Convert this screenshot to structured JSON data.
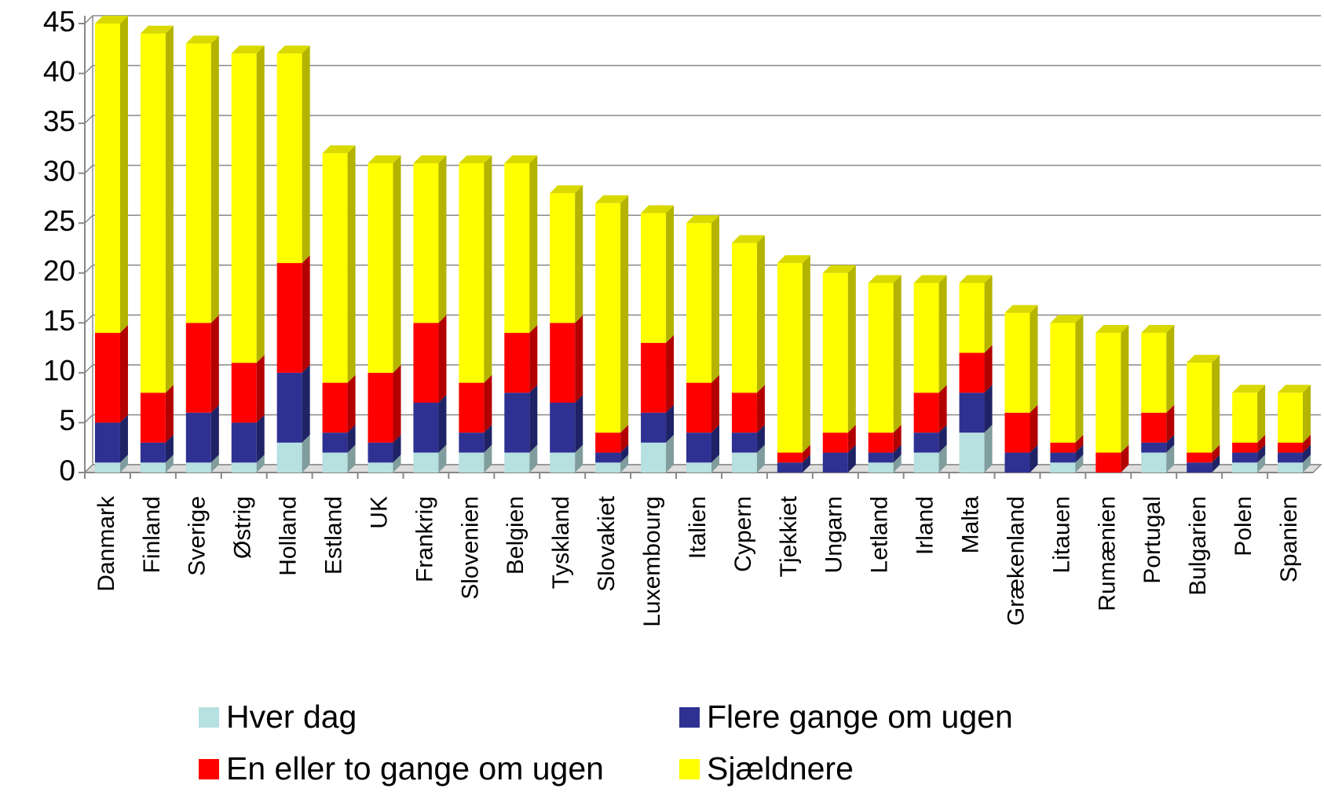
{
  "chart_data": {
    "type": "bar",
    "stacked": true,
    "categories": [
      "Danmark",
      "Finland",
      "Sverige",
      "Østrig",
      "Holland",
      "Estland",
      "UK",
      "Frankrig",
      "Slovenien",
      "Belgien",
      "Tyskland",
      "Slovakiet",
      "Luxembourg",
      "Italien",
      "Cypern",
      "Tjekkiet",
      "Ungarn",
      "Letland",
      "Irland",
      "Malta",
      "Grækenland",
      "Litauen",
      "Rumænien",
      "Portugal",
      "Bulgarien",
      "Polen",
      "Spanien"
    ],
    "series": [
      {
        "name": "Hver dag",
        "color": "#b7e0e0",
        "values": [
          1,
          1,
          1,
          1,
          3,
          2,
          1,
          2,
          2,
          2,
          2,
          1,
          3,
          1,
          2,
          0,
          0,
          1,
          2,
          4,
          0,
          1,
          0,
          2,
          0,
          1,
          1
        ]
      },
      {
        "name": "Flere gange om ugen",
        "color": "#2e3192",
        "values": [
          4,
          2,
          5,
          4,
          7,
          2,
          2,
          5,
          2,
          6,
          5,
          1,
          3,
          3,
          2,
          1,
          2,
          1,
          2,
          4,
          2,
          1,
          0,
          1,
          1,
          1,
          1
        ]
      },
      {
        "name": "En eller to gange om ugen",
        "color": "#ff0000",
        "values": [
          9,
          5,
          9,
          6,
          11,
          5,
          7,
          8,
          5,
          6,
          8,
          2,
          7,
          5,
          4,
          1,
          2,
          2,
          4,
          4,
          4,
          1,
          2,
          3,
          1,
          1,
          1
        ]
      },
      {
        "name": "Sjældnere",
        "color": "#ffff00",
        "values": [
          31,
          36,
          28,
          31,
          21,
          23,
          21,
          16,
          22,
          17,
          13,
          23,
          13,
          16,
          15,
          19,
          16,
          15,
          11,
          7,
          10,
          12,
          12,
          8,
          9,
          5,
          5
        ]
      }
    ],
    "ylim": [
      0,
      45
    ],
    "yticks": [
      0,
      5,
      10,
      15,
      20,
      25,
      30,
      35,
      40,
      45
    ],
    "grid": true
  }
}
